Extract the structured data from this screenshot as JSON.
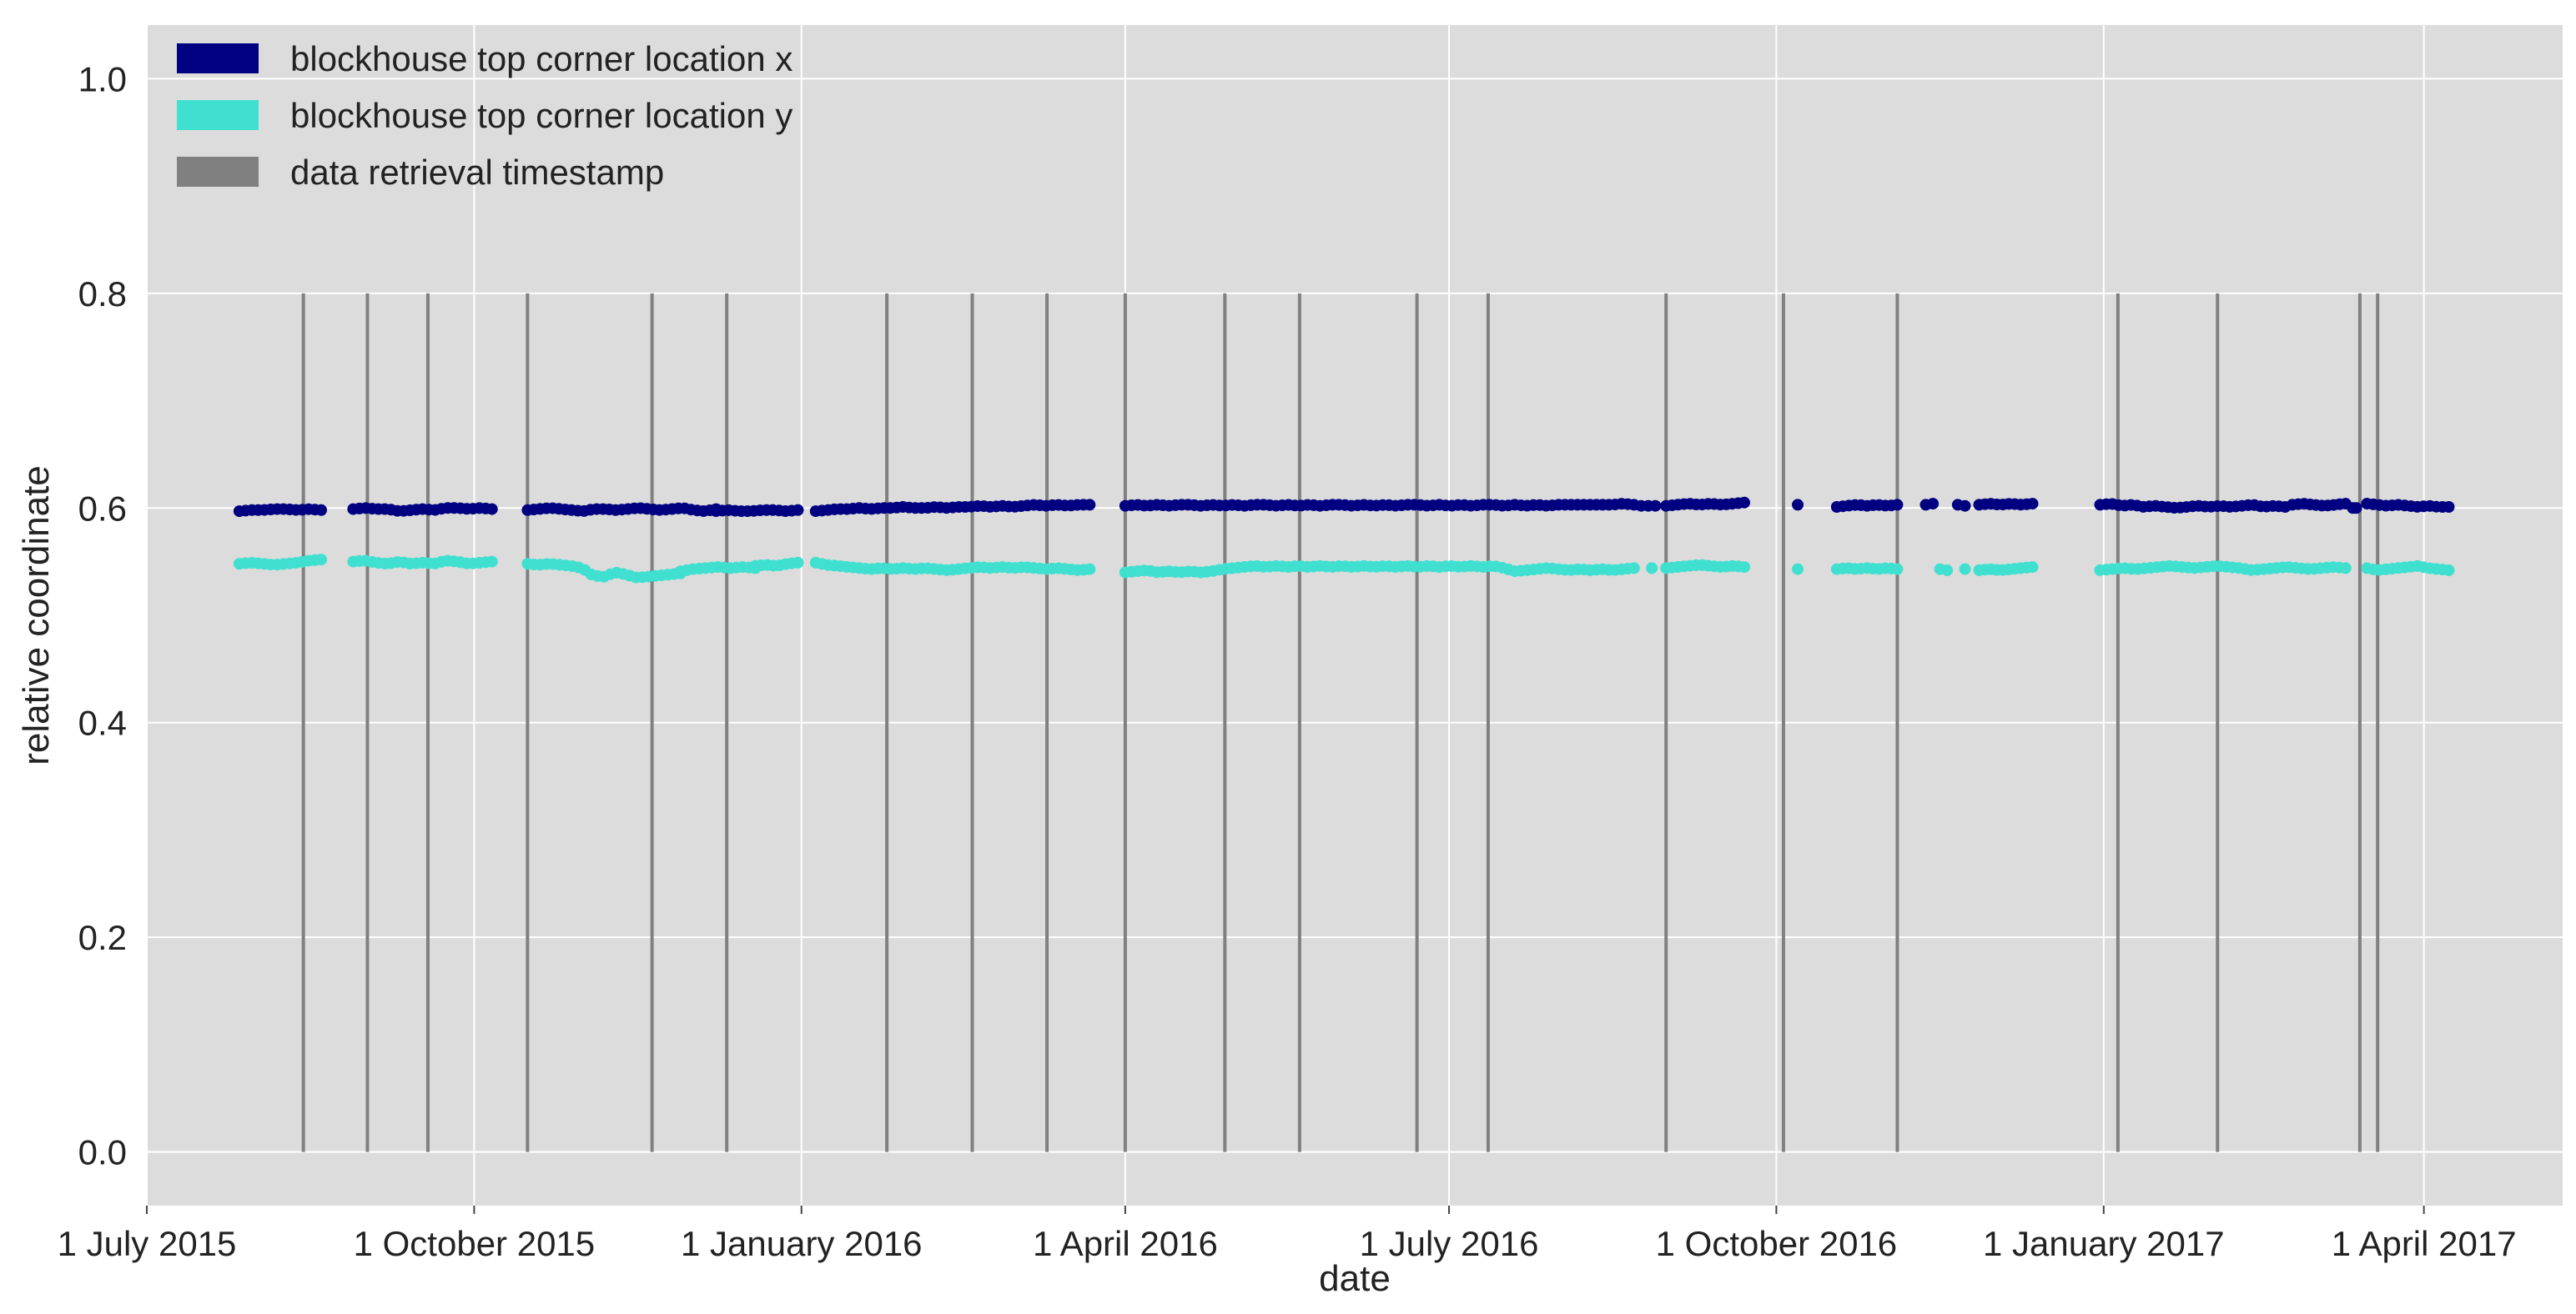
{
  "chart_data": {
    "type": "scatter",
    "title": "",
    "xlabel": "date",
    "ylabel": "relative coordinate",
    "xlim": [
      "2015-07-01",
      "2017-05-10"
    ],
    "ylim": [
      -0.05,
      1.05
    ],
    "grid": true,
    "legend_position": "top-left",
    "colors": {
      "x": "#000080",
      "y": "#40e0d0",
      "timestamp": "#808080",
      "background": "#dcdcdc",
      "grid": "#ffffff"
    },
    "x_ticks": [
      {
        "date": "2015-07-01",
        "label": "1 July 2015"
      },
      {
        "date": "2015-10-01",
        "label": "1 October 2015"
      },
      {
        "date": "2016-01-01",
        "label": "1 January 2016"
      },
      {
        "date": "2016-04-01",
        "label": "1 April 2016"
      },
      {
        "date": "2016-07-01",
        "label": "1 July 2016"
      },
      {
        "date": "2016-10-01",
        "label": "1 October 2016"
      },
      {
        "date": "2017-01-01",
        "label": "1 January 2017"
      },
      {
        "date": "2017-04-01",
        "label": "1 April 2017"
      }
    ],
    "y_ticks": [
      {
        "value": 0.0,
        "label": "0.0"
      },
      {
        "value": 0.2,
        "label": "0.2"
      },
      {
        "value": 0.4,
        "label": "0.4"
      },
      {
        "value": 0.6,
        "label": "0.6"
      },
      {
        "value": 0.8,
        "label": "0.8"
      },
      {
        "value": 1.0,
        "label": "1.0"
      }
    ],
    "legend": [
      {
        "key": "x",
        "label": "blockhouse top corner location x",
        "color": "#000080"
      },
      {
        "key": "y",
        "label": "blockhouse top corner location y",
        "color": "#40e0d0"
      },
      {
        "key": "timestamp",
        "label": "data retrieval timestamp",
        "color": "#808080"
      }
    ],
    "timestamps": {
      "ymin": 0.0,
      "ymax": 0.8,
      "dates": [
        "2015-08-14",
        "2015-09-01",
        "2015-09-18",
        "2015-10-16",
        "2015-11-20",
        "2015-12-11",
        "2016-01-25",
        "2016-02-18",
        "2016-03-10",
        "2016-04-01",
        "2016-04-29",
        "2016-05-20",
        "2016-06-22",
        "2016-07-12",
        "2016-08-31",
        "2016-10-03",
        "2016-11-04",
        "2017-01-05",
        "2017-02-02",
        "2017-03-14",
        "2017-03-19"
      ]
    },
    "series": [
      {
        "key": "x",
        "segments": [
          {
            "start": "2015-07-27",
            "end": "2015-08-19",
            "values": [
              0.597,
              0.598,
              0.598,
              0.599,
              0.599,
              0.598,
              0.599,
              0.598
            ]
          },
          {
            "start": "2015-08-28",
            "end": "2015-10-06",
            "values": [
              0.599,
              0.6,
              0.599,
              0.599,
              0.597,
              0.598,
              0.599,
              0.598,
              0.6,
              0.6,
              0.599,
              0.6,
              0.599
            ]
          },
          {
            "start": "2015-10-16",
            "end": "2015-12-08",
            "values": [
              0.598,
              0.599,
              0.6,
              0.599,
              0.598,
              0.597,
              0.599,
              0.599,
              0.598,
              0.599,
              0.6,
              0.599,
              0.598,
              0.599,
              0.6,
              0.598,
              0.597,
              0.599
            ]
          },
          {
            "start": "2015-12-08",
            "end": "2015-12-31",
            "values": [
              0.597,
              0.598,
              0.597,
              0.597,
              0.598,
              0.598,
              0.597,
              0.598
            ]
          },
          {
            "start": "2016-01-05",
            "end": "2016-03-22",
            "values": [
              0.597,
              0.598,
              0.599,
              0.599,
              0.6,
              0.599,
              0.6,
              0.6,
              0.601,
              0.6,
              0.6,
              0.601,
              0.6,
              0.601,
              0.601,
              0.602,
              0.601,
              0.602,
              0.601,
              0.602,
              0.603,
              0.602,
              0.603,
              0.602,
              0.603,
              0.603
            ]
          },
          {
            "start": "2016-04-01",
            "end": "2016-08-22",
            "values": [
              0.602,
              0.603,
              0.602,
              0.603,
              0.602,
              0.603,
              0.603,
              0.602,
              0.603,
              0.602,
              0.603,
              0.602,
              0.603,
              0.603,
              0.602,
              0.603,
              0.602,
              0.603,
              0.602,
              0.603,
              0.603,
              0.602,
              0.603,
              0.602,
              0.603,
              0.602,
              0.603,
              0.603,
              0.602,
              0.603,
              0.602,
              0.603,
              0.602,
              0.603,
              0.603,
              0.602,
              0.603,
              0.602,
              0.603,
              0.602,
              0.603,
              0.603,
              0.603,
              0.603,
              0.603,
              0.603,
              0.604,
              0.603
            ]
          },
          {
            "start": "2016-08-24",
            "end": "2016-08-28",
            "values": [
              0.602,
              0.602
            ]
          },
          {
            "start": "2016-08-31",
            "end": "2016-09-22",
            "values": [
              0.602,
              0.603,
              0.604,
              0.603,
              0.604,
              0.603,
              0.604,
              0.605
            ]
          },
          {
            "start": "2016-10-07",
            "end": "2016-10-07",
            "values": [
              0.603
            ]
          },
          {
            "start": "2016-10-18",
            "end": "2016-11-04",
            "values": [
              0.601,
              0.602,
              0.603,
              0.602,
              0.603,
              0.602,
              0.603
            ]
          },
          {
            "start": "2016-11-12",
            "end": "2016-11-14",
            "values": [
              0.603,
              0.604
            ]
          },
          {
            "start": "2016-11-21",
            "end": "2016-11-23",
            "values": [
              0.603,
              0.602
            ]
          },
          {
            "start": "2016-11-27",
            "end": "2016-12-12",
            "values": [
              0.603,
              0.604,
              0.603,
              0.604,
              0.603,
              0.604
            ]
          },
          {
            "start": "2016-12-31",
            "end": "2017-02-21",
            "values": [
              0.603,
              0.604,
              0.602,
              0.603,
              0.601,
              0.602,
              0.601,
              0.6,
              0.601,
              0.602,
              0.601,
              0.602,
              0.601,
              0.602,
              0.603,
              0.601,
              0.602,
              0.601
            ]
          },
          {
            "start": "2017-02-23",
            "end": "2017-03-10",
            "values": [
              0.603,
              0.604,
              0.603,
              0.602,
              0.603,
              0.604
            ]
          },
          {
            "start": "2017-03-12",
            "end": "2017-03-13",
            "values": [
              0.6
            ]
          },
          {
            "start": "2017-03-16",
            "end": "2017-04-08",
            "values": [
              0.604,
              0.603,
              0.602,
              0.603,
              0.602,
              0.601,
              0.602,
              0.601,
              0.601
            ]
          }
        ]
      },
      {
        "key": "y",
        "segments": [
          {
            "start": "2015-07-27",
            "end": "2015-08-19",
            "values": [
              0.548,
              0.549,
              0.548,
              0.547,
              0.548,
              0.549,
              0.551,
              0.552
            ]
          },
          {
            "start": "2015-08-28",
            "end": "2015-10-06",
            "values": [
              0.55,
              0.551,
              0.549,
              0.548,
              0.55,
              0.548,
              0.549,
              0.548,
              0.551,
              0.55,
              0.548,
              0.549,
              0.55
            ]
          },
          {
            "start": "2015-10-16",
            "end": "2015-11-28",
            "values": [
              0.548,
              0.547,
              0.548,
              0.547,
              0.546,
              0.544,
              0.537,
              0.536,
              0.54,
              0.538,
              0.535,
              0.536,
              0.537,
              0.538,
              0.539
            ]
          },
          {
            "start": "2015-11-28",
            "end": "2015-12-19",
            "values": [
              0.541,
              0.543,
              0.544,
              0.545,
              0.544,
              0.545,
              0.544
            ]
          },
          {
            "start": "2015-12-19",
            "end": "2015-12-31",
            "values": [
              0.546,
              0.547,
              0.546,
              0.548,
              0.549
            ]
          },
          {
            "start": "2016-01-05",
            "end": "2016-03-22",
            "values": [
              0.549,
              0.547,
              0.546,
              0.545,
              0.544,
              0.543,
              0.544,
              0.543,
              0.544,
              0.543,
              0.544,
              0.543,
              0.542,
              0.543,
              0.544,
              0.545,
              0.544,
              0.545,
              0.544,
              0.545,
              0.544,
              0.543,
              0.544,
              0.543,
              0.542,
              0.543
            ]
          },
          {
            "start": "2016-04-01",
            "end": "2016-08-22",
            "values": [
              0.54,
              0.541,
              0.542,
              0.54,
              0.541,
              0.54,
              0.541,
              0.54,
              0.541,
              0.543,
              0.544,
              0.545,
              0.546,
              0.545,
              0.546,
              0.545,
              0.546,
              0.545,
              0.546,
              0.545,
              0.546,
              0.545,
              0.546,
              0.545,
              0.546,
              0.545,
              0.546,
              0.545,
              0.546,
              0.545,
              0.546,
              0.545,
              0.546,
              0.545,
              0.546,
              0.544,
              0.541,
              0.542,
              0.543,
              0.544,
              0.543,
              0.542,
              0.543,
              0.542,
              0.543,
              0.542,
              0.543,
              0.544
            ]
          },
          {
            "start": "2016-08-27",
            "end": "2016-08-27",
            "values": [
              0.544
            ]
          },
          {
            "start": "2016-08-31",
            "end": "2016-09-22",
            "values": [
              0.544,
              0.545,
              0.546,
              0.547,
              0.546,
              0.545,
              0.546,
              0.545
            ]
          },
          {
            "start": "2016-10-07",
            "end": "2016-10-07",
            "values": [
              0.543
            ]
          },
          {
            "start": "2016-10-18",
            "end": "2016-11-04",
            "values": [
              0.543,
              0.544,
              0.543,
              0.544,
              0.543,
              0.544,
              0.543
            ]
          },
          {
            "start": "2016-11-16",
            "end": "2016-11-18",
            "values": [
              0.543,
              0.542
            ]
          },
          {
            "start": "2016-11-23",
            "end": "2016-11-23",
            "values": [
              0.543
            ]
          },
          {
            "start": "2016-11-27",
            "end": "2016-12-12",
            "values": [
              0.542,
              0.543,
              0.542,
              0.543,
              0.544,
              0.545
            ]
          },
          {
            "start": "2016-12-31",
            "end": "2017-03-10",
            "values": [
              0.542,
              0.543,
              0.544,
              0.543,
              0.544,
              0.545,
              0.546,
              0.545,
              0.544,
              0.545,
              0.546,
              0.545,
              0.544,
              0.542,
              0.543,
              0.544,
              0.545,
              0.544,
              0.543,
              0.544,
              0.545,
              0.544
            ]
          },
          {
            "start": "2017-03-16",
            "end": "2017-04-08",
            "values": [
              0.544,
              0.542,
              0.543,
              0.544,
              0.545,
              0.546,
              0.544,
              0.543,
              0.542
            ]
          }
        ]
      }
    ]
  }
}
